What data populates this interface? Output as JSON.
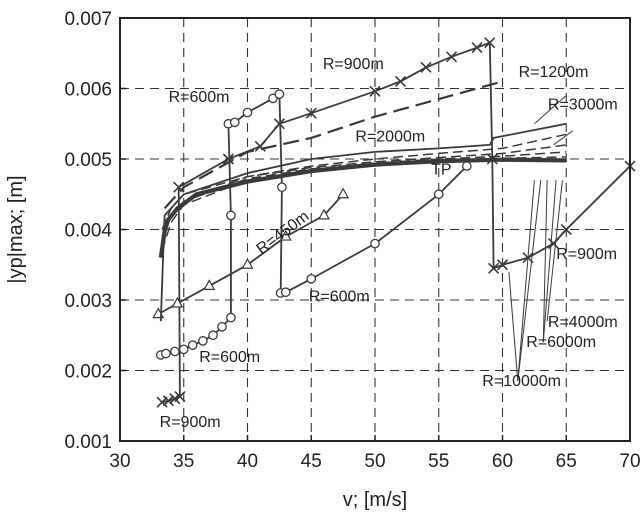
{
  "chart_data": {
    "type": "line",
    "title": "",
    "xlabel": "v; [m/s]",
    "ylabel": "|yp|max; [m]",
    "xlim": [
      30,
      70
    ],
    "ylim": [
      0.001,
      0.007
    ],
    "xticks": [
      30,
      35,
      40,
      45,
      50,
      55,
      60,
      65,
      70
    ],
    "xtick_labels": [
      "30",
      "35",
      "40",
      "45",
      "50",
      "55",
      "60",
      "65",
      "70"
    ],
    "yticks": [
      0.001,
      0.002,
      0.003,
      0.004,
      0.005,
      0.006,
      0.007
    ],
    "ytick_labels": [
      "0.001",
      "0.002",
      "0.003",
      "0.004",
      "0.005",
      "0.006",
      "0.007"
    ],
    "grid": "dashed",
    "legend": "none (inline curve labels)",
    "series": [
      {
        "name": "R=900m",
        "style": "solid",
        "marker": "x",
        "points": [
          [
            33.3,
            0.00155
          ],
          [
            33.8,
            0.00157
          ],
          [
            34.3,
            0.0016
          ],
          [
            34.7,
            0.00163
          ],
          [
            34.6,
            0.0046
          ],
          [
            38.5,
            0.005
          ],
          [
            41,
            0.00518
          ],
          [
            42.5,
            0.0055
          ],
          [
            45,
            0.00565
          ],
          [
            50,
            0.00596
          ],
          [
            52,
            0.0061
          ],
          [
            54,
            0.0063
          ],
          [
            56,
            0.00645
          ],
          [
            58,
            0.00658
          ],
          [
            59,
            0.00665
          ],
          [
            59.2,
            0.005
          ],
          [
            59.3,
            0.00345
          ],
          [
            60,
            0.0035
          ],
          [
            62,
            0.0036
          ],
          [
            64,
            0.0038
          ],
          [
            65,
            0.004
          ],
          [
            70,
            0.0049
          ]
        ]
      },
      {
        "name": "R=600m",
        "style": "solid",
        "marker": "o",
        "points": [
          [
            33.2,
            0.00222
          ],
          [
            33.6,
            0.00224
          ],
          [
            34.3,
            0.00227
          ],
          [
            35,
            0.0023
          ],
          [
            35.7,
            0.00236
          ],
          [
            36.5,
            0.00242
          ],
          [
            37.3,
            0.0025
          ],
          [
            38,
            0.00262
          ],
          [
            38.7,
            0.00275
          ],
          [
            38.7,
            0.0042
          ],
          [
            38.5,
            0.0055
          ],
          [
            39,
            0.00552
          ],
          [
            40,
            0.00566
          ],
          [
            42,
            0.00586
          ],
          [
            42.5,
            0.00592
          ],
          [
            42.7,
            0.0046
          ],
          [
            42.6,
            0.0031
          ],
          [
            43,
            0.00311
          ],
          [
            45,
            0.0033
          ],
          [
            50,
            0.0038
          ],
          [
            55,
            0.0045
          ],
          [
            57.2,
            0.0049
          ]
        ]
      },
      {
        "name": "R=450m",
        "style": "solid",
        "marker": "triangle",
        "points": [
          [
            33,
            0.0028
          ],
          [
            34.5,
            0.00295
          ],
          [
            37,
            0.0032
          ],
          [
            40,
            0.0035
          ],
          [
            43,
            0.0039
          ],
          [
            46,
            0.0042
          ],
          [
            47.5,
            0.0045
          ]
        ]
      },
      {
        "name": "R=1200m",
        "style": "long-dash",
        "marker": "none",
        "points": [
          [
            33.5,
            0.0043
          ],
          [
            35,
            0.0046
          ],
          [
            40,
            0.0051
          ],
          [
            45,
            0.0053
          ],
          [
            50,
            0.0056
          ],
          [
            55,
            0.00585
          ],
          [
            60,
            0.0061
          ]
        ]
      },
      {
        "name": "R=2000m",
        "style": "solid",
        "marker": "none",
        "points": [
          [
            33.2,
            0.0027
          ],
          [
            33.5,
            0.0042
          ],
          [
            35,
            0.0045
          ],
          [
            40,
            0.0048
          ],
          [
            45,
            0.005
          ],
          [
            50,
            0.0051
          ],
          [
            55,
            0.00515
          ],
          [
            59,
            0.0052
          ],
          [
            59.3,
            0.0053
          ],
          [
            65,
            0.0055
          ]
        ]
      },
      {
        "name": "R=3000m",
        "style": "dash",
        "marker": "none",
        "points": [
          [
            33.3,
            0.004
          ],
          [
            34,
            0.0043
          ],
          [
            35,
            0.0045
          ],
          [
            40,
            0.00475
          ],
          [
            45,
            0.0049
          ],
          [
            50,
            0.005
          ],
          [
            55,
            0.00508
          ],
          [
            60,
            0.00515
          ],
          [
            65,
            0.00535
          ]
        ]
      },
      {
        "name": "R=4000m",
        "style": "dash",
        "marker": "none",
        "points": [
          [
            33.3,
            0.0039
          ],
          [
            34,
            0.0042
          ],
          [
            35,
            0.0044
          ],
          [
            40,
            0.00475
          ],
          [
            45,
            0.00488
          ],
          [
            50,
            0.00496
          ],
          [
            55,
            0.00502
          ],
          [
            60,
            0.00508
          ],
          [
            65,
            0.0052
          ]
        ]
      },
      {
        "name": "R=6000m",
        "style": "dash",
        "marker": "none",
        "points": [
          [
            33.3,
            0.0038
          ],
          [
            34,
            0.0042
          ],
          [
            35,
            0.0044
          ],
          [
            40,
            0.00472
          ],
          [
            45,
            0.00486
          ],
          [
            50,
            0.00494
          ],
          [
            55,
            0.005
          ],
          [
            60,
            0.00504
          ],
          [
            65,
            0.0051
          ]
        ]
      },
      {
        "name": "R=10000m",
        "style": "dash",
        "marker": "none",
        "points": [
          [
            33.3,
            0.0037
          ],
          [
            34,
            0.0041
          ],
          [
            35,
            0.00435
          ],
          [
            40,
            0.0047
          ],
          [
            45,
            0.00484
          ],
          [
            50,
            0.00492
          ],
          [
            55,
            0.00498
          ],
          [
            60,
            0.00501
          ],
          [
            65,
            0.00503
          ]
        ]
      },
      {
        "name": "TP",
        "style": "thick",
        "marker": "none",
        "points": [
          [
            33.2,
            0.0036
          ],
          [
            33.6,
            0.0041
          ],
          [
            34.5,
            0.0043
          ],
          [
            36,
            0.0045
          ],
          [
            40,
            0.00468
          ],
          [
            45,
            0.00483
          ],
          [
            50,
            0.00492
          ],
          [
            55,
            0.00497
          ],
          [
            60,
            0.00499
          ],
          [
            65,
            0.00498
          ]
        ]
      }
    ],
    "annotations": [
      {
        "text": "R=900m",
        "x": 48.3,
        "y": 0.00628
      },
      {
        "text": "R=1200m",
        "x": 64,
        "y": 0.00616
      },
      {
        "text": "R=600m",
        "x": 36.2,
        "y": 0.00581
      },
      {
        "text": "R=3000m",
        "x": 66.3,
        "y": 0.0057
      },
      {
        "text": "R=2000m",
        "x": 51.2,
        "y": 0.00525
      },
      {
        "text": "TP",
        "x": 55.2,
        "y": 0.00478
      },
      {
        "text": "R=450m",
        "x": 43,
        "y": 0.0039,
        "rotate": -37
      },
      {
        "text": "R=900m",
        "x": 66.6,
        "y": 0.00358
      },
      {
        "text": "R=600m",
        "x": 47.2,
        "y": 0.00298
      },
      {
        "text": "R=4000m",
        "x": 66.3,
        "y": 0.00262
      },
      {
        "text": "R=600m",
        "x": 38.6,
        "y": 0.00212
      },
      {
        "text": "R=6000m",
        "x": 64.6,
        "y": 0.00233
      },
      {
        "text": "R=10000m",
        "x": 61.5,
        "y": 0.00178
      },
      {
        "text": "R=900m",
        "x": 35.5,
        "y": 0.0012
      }
    ],
    "leaders": [
      {
        "from": [
          61.2,
          0.00185
        ],
        "to": [
          63,
          0.0047
        ]
      },
      {
        "from": [
          63.2,
          0.0024
        ],
        "to": [
          63.5,
          0.0047
        ]
      },
      {
        "from": [
          63.2,
          0.0024
        ],
        "to": [
          64.2,
          0.0047
        ]
      },
      {
        "from": [
          61.2,
          0.00185
        ],
        "to": [
          62.5,
          0.0047
        ]
      },
      {
        "from": [
          61.2,
          0.00185
        ],
        "to": [
          60.5,
          0.0034
        ]
      },
      {
        "from": [
          63.5,
          0.0027
        ],
        "to": [
          64.7,
          0.0047
        ]
      },
      {
        "from": [
          65,
          0.0059
        ],
        "to": [
          62.5,
          0.0055
        ]
      },
      {
        "from": [
          65.5,
          0.0054
        ],
        "to": [
          64,
          0.0052
        ]
      }
    ]
  }
}
